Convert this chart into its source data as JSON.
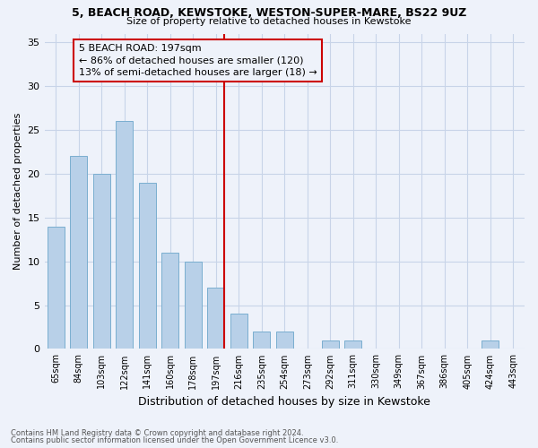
{
  "title1": "5, BEACH ROAD, KEWSTOKE, WESTON-SUPER-MARE, BS22 9UZ",
  "title2": "Size of property relative to detached houses in Kewstoke",
  "xlabel": "Distribution of detached houses by size in Kewstoke",
  "ylabel": "Number of detached properties",
  "categories": [
    "65sqm",
    "84sqm",
    "103sqm",
    "122sqm",
    "141sqm",
    "160sqm",
    "178sqm",
    "197sqm",
    "216sqm",
    "235sqm",
    "254sqm",
    "273sqm",
    "292sqm",
    "311sqm",
    "330sqm",
    "349sqm",
    "367sqm",
    "386sqm",
    "405sqm",
    "424sqm",
    "443sqm"
  ],
  "values": [
    14,
    22,
    20,
    26,
    19,
    11,
    10,
    7,
    4,
    2,
    2,
    0,
    1,
    1,
    0,
    0,
    0,
    0,
    0,
    1,
    0
  ],
  "bar_color": "#b8d0e8",
  "bar_edge_color": "#7aaed0",
  "vline_index": 7,
  "vline_color": "#cc0000",
  "annotation_text": "5 BEACH ROAD: 197sqm\n← 86% of detached houses are smaller (120)\n13% of semi-detached houses are larger (18) →",
  "ylim": [
    0,
    36
  ],
  "yticks": [
    0,
    5,
    10,
    15,
    20,
    25,
    30,
    35
  ],
  "footnote1": "Contains HM Land Registry data © Crown copyright and database right 2024.",
  "footnote2": "Contains public sector information licensed under the Open Government Licence v3.0.",
  "grid_color": "#c8d4e8",
  "bg_color": "#eef2fa"
}
